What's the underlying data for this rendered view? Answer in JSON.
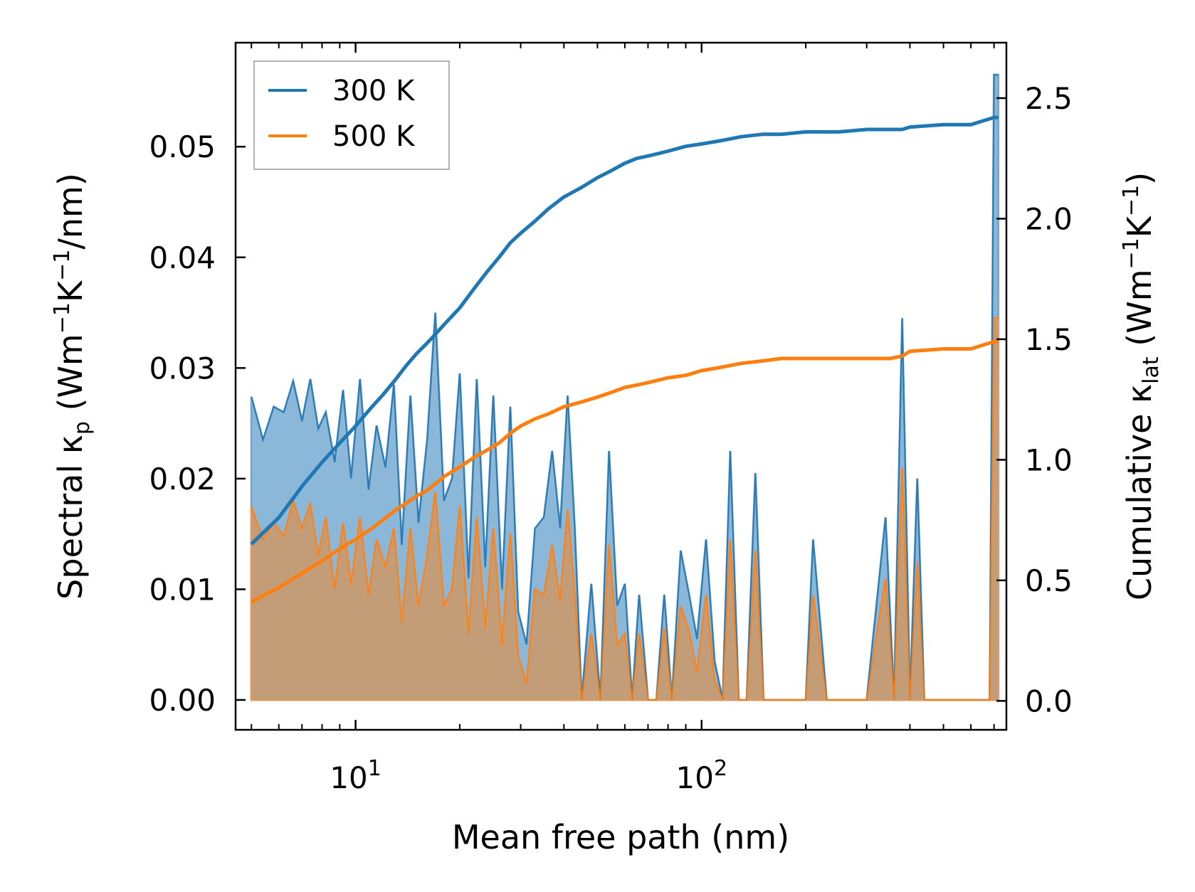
{
  "chart_data": {
    "type": "line",
    "x_scale": "log",
    "xlabel": "Mean free path (nm)",
    "xlim": [
      4.5,
      760
    ],
    "x_ticks": [
      10,
      100
    ],
    "x_tick_labels": [
      {
        "base": "10",
        "exp": "1"
      },
      {
        "base": "10",
        "exp": "2"
      }
    ],
    "ylabel_left": {
      "pre": "Spectral κ",
      "sub": "p",
      "mid": " (Wm",
      "sup1": "−1",
      "mid2": "K",
      "sup2": "−1",
      "post": "/nm)"
    },
    "ylim_left": [
      -0.0027,
      0.0594
    ],
    "yticks_left": [
      "0.00",
      "0.01",
      "0.02",
      "0.03",
      "0.04",
      "0.05"
    ],
    "ylabel_right": {
      "pre": "Cumulative κ",
      "sub": "lat",
      "mid": " (Wm",
      "sup1": "−1",
      "mid2": "K",
      "sup2": "−1",
      "post": ")"
    },
    "ylim_right": [
      -0.12,
      2.73
    ],
    "yticks_right": [
      "0.0",
      "0.5",
      "1.0",
      "1.5",
      "2.0",
      "2.5"
    ],
    "legend": {
      "position": "top-left",
      "entries": [
        "300 K",
        "500 K"
      ]
    },
    "colors": {
      "300 K": "#1f77b4",
      "500 K": "#ff7f0e",
      "fill_300": "#8bb7d9",
      "fill_500": "#c69b73"
    },
    "spectral": {
      "x": [
        5,
        5.4,
        5.8,
        6.2,
        6.6,
        7,
        7.4,
        7.8,
        8.2,
        8.7,
        9.2,
        9.7,
        10.3,
        10.9,
        11.5,
        12.2,
        12.9,
        13.6,
        14.4,
        15.2,
        16.1,
        17,
        18,
        19,
        20,
        21.2,
        22.4,
        23.7,
        25,
        26.5,
        28,
        29.5,
        31.2,
        33,
        35,
        37,
        39,
        41,
        43,
        45,
        48,
        51,
        54,
        57,
        60,
        63,
        66,
        70,
        74,
        78,
        82,
        87,
        92,
        97,
        103,
        109,
        115,
        121,
        128,
        135,
        143,
        151,
        160,
        170,
        180,
        190,
        200,
        210,
        230,
        260,
        300,
        340,
        360,
        380,
        400,
        420,
        440,
        460,
        480,
        520,
        560,
        600,
        640,
        680,
        700,
        720
      ],
      "series": [
        {
          "name": "300 K",
          "values": [
            0.0274,
            0.0235,
            0.0265,
            0.026,
            0.0288,
            0.0252,
            0.029,
            0.0245,
            0.026,
            0.0215,
            0.028,
            0.02,
            0.029,
            0.019,
            0.0248,
            0.021,
            0.0285,
            0.014,
            0.0275,
            0.016,
            0.0235,
            0.035,
            0.018,
            0.02,
            0.0295,
            0.011,
            0.029,
            0.012,
            0.0275,
            0.01,
            0.0265,
            0.008,
            0.005,
            0.0155,
            0.0165,
            0.0225,
            0.0155,
            0.0275,
            0.0155,
            0.0,
            0.0105,
            0.0,
            0.0225,
            0.0085,
            0.0105,
            0.0,
            0.0095,
            0.0,
            0.0,
            0.0095,
            0.0,
            0.0135,
            0.0095,
            0.0055,
            0.0145,
            0.0035,
            0.0,
            0.0225,
            0.0,
            0.0,
            0.0205,
            0.0,
            0.0,
            0.0,
            0.0,
            0.0,
            0.0,
            0.0145,
            0.0,
            0.0,
            0.0,
            0.0165,
            0.0,
            0.0345,
            0.0,
            0.02,
            0.0,
            0.0,
            0.0,
            0.0,
            0.0,
            0.0,
            0.0,
            0.0,
            0.0565,
            0.0565
          ]
        },
        {
          "name": "500 K",
          "values": [
            0.0175,
            0.0145,
            0.016,
            0.0148,
            0.018,
            0.0155,
            0.0178,
            0.013,
            0.0165,
            0.01,
            0.016,
            0.0105,
            0.0165,
            0.0095,
            0.0145,
            0.012,
            0.0155,
            0.007,
            0.0155,
            0.0085,
            0.013,
            0.0188,
            0.0085,
            0.01,
            0.0175,
            0.006,
            0.0165,
            0.0065,
            0.0155,
            0.005,
            0.015,
            0.004,
            0.0015,
            0.01,
            0.0095,
            0.014,
            0.009,
            0.0172,
            0.0095,
            0.0,
            0.006,
            0.0,
            0.014,
            0.005,
            0.006,
            0.0,
            0.006,
            0.0,
            0.0,
            0.0065,
            0.0,
            0.0085,
            0.0062,
            0.0025,
            0.0095,
            0.0018,
            0.0,
            0.0145,
            0.0,
            0.0,
            0.0135,
            0.0,
            0.0,
            0.0,
            0.0,
            0.0,
            0.0,
            0.0095,
            0.0,
            0.0,
            0.0,
            0.011,
            0.0,
            0.021,
            0.0,
            0.0125,
            0.0,
            0.0,
            0.0,
            0.0,
            0.0,
            0.0,
            0.0,
            0.0,
            0.0345,
            0.0345
          ]
        }
      ]
    },
    "cumulative": {
      "x": [
        5,
        6,
        7,
        8,
        9,
        10,
        11,
        12,
        13,
        14,
        15,
        16,
        17,
        18,
        20,
        22,
        24,
        26,
        28,
        30,
        33,
        36,
        40,
        45,
        50,
        55,
        60,
        65,
        70,
        80,
        90,
        100,
        110,
        120,
        130,
        150,
        170,
        200,
        250,
        300,
        350,
        380,
        400,
        500,
        600,
        700,
        720
      ],
      "series": [
        {
          "name": "300 K",
          "values": [
            0.65,
            0.76,
            0.89,
            0.99,
            1.07,
            1.14,
            1.21,
            1.27,
            1.33,
            1.39,
            1.44,
            1.48,
            1.52,
            1.56,
            1.63,
            1.71,
            1.78,
            1.84,
            1.9,
            1.94,
            1.99,
            2.04,
            2.09,
            2.13,
            2.17,
            2.2,
            2.23,
            2.25,
            2.26,
            2.28,
            2.3,
            2.31,
            2.32,
            2.33,
            2.34,
            2.35,
            2.35,
            2.36,
            2.36,
            2.37,
            2.37,
            2.37,
            2.38,
            2.39,
            2.39,
            2.42,
            2.42
          ]
        },
        {
          "name": "500 K",
          "values": [
            0.41,
            0.47,
            0.53,
            0.58,
            0.63,
            0.67,
            0.71,
            0.75,
            0.79,
            0.82,
            0.85,
            0.87,
            0.9,
            0.93,
            0.97,
            1.01,
            1.04,
            1.07,
            1.11,
            1.14,
            1.17,
            1.19,
            1.22,
            1.24,
            1.26,
            1.28,
            1.3,
            1.31,
            1.32,
            1.34,
            1.35,
            1.37,
            1.38,
            1.39,
            1.4,
            1.41,
            1.42,
            1.42,
            1.42,
            1.42,
            1.42,
            1.43,
            1.45,
            1.46,
            1.46,
            1.49,
            1.49
          ]
        }
      ]
    }
  }
}
